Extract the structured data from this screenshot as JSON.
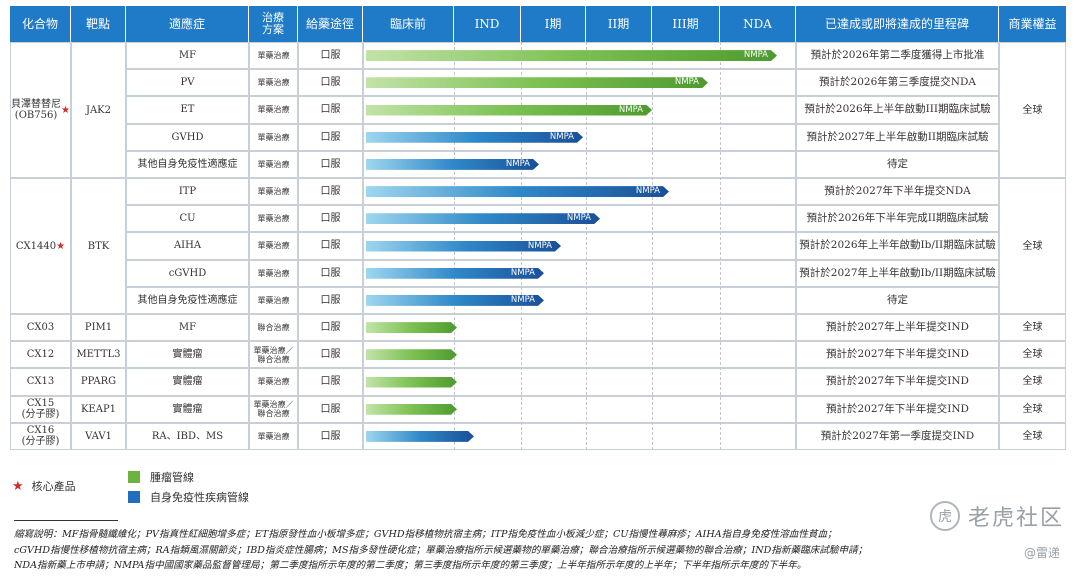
{
  "header": {
    "compound": "化合物",
    "target": "靶點",
    "indication": "適應症",
    "treatment": "治療\n方案",
    "route": "給藥途徑",
    "stages": [
      "臨床前",
      "IND",
      "I期",
      "II期",
      "III期",
      "NDA"
    ],
    "milestone": "已達成或即將達成的里程碑",
    "rights": "商業權益"
  },
  "groups": [
    {
      "compound": "貝澤替替尼\n(OB756)",
      "core": true,
      "target": "JAK2",
      "rights": "全球",
      "rows": [
        {
          "indication": "MF",
          "treatment": "單藥治療",
          "route": "口服",
          "progress": 0.95,
          "pipeline": "green",
          "tag": "NMPA",
          "milestone": "預計於2026年第二季度獲得上市批准"
        },
        {
          "indication": "PV",
          "treatment": "單藥治療",
          "route": "口服",
          "progress": 0.79,
          "pipeline": "green",
          "tag": "NMPA",
          "milestone": "預計於2026年第三季度提交NDA"
        },
        {
          "indication": "ET",
          "treatment": "單藥治療",
          "route": "口服",
          "progress": 0.66,
          "pipeline": "green",
          "tag": "NMPA",
          "milestone": "預計於2026年上半年啟動III期臨床試驗"
        },
        {
          "indication": "GVHD",
          "treatment": "單藥治療",
          "route": "口服",
          "progress": 0.5,
          "pipeline": "blue",
          "tag": "NMPA",
          "milestone": "預計於2027年上半年啟動II期臨床試驗"
        },
        {
          "indication": "其他自身免疫性適應症",
          "treatment": "單藥治療",
          "route": "口服",
          "progress": 0.4,
          "pipeline": "blue",
          "tag": "NMPA",
          "milestone": "待定"
        }
      ]
    },
    {
      "compound": "CX1440",
      "core": true,
      "target": "BTK",
      "rights": "全球",
      "rows": [
        {
          "indication": "ITP",
          "treatment": "單藥治療",
          "route": "口服",
          "progress": 0.7,
          "pipeline": "blue",
          "tag": "NMPA",
          "milestone": "預計於2027年下半年提交NDA"
        },
        {
          "indication": "CU",
          "treatment": "單藥治療",
          "route": "口服",
          "progress": 0.54,
          "pipeline": "blue",
          "tag": "NMPA",
          "milestone": "預計於2026年下半年完成II期臨床試驗"
        },
        {
          "indication": "AIHA",
          "treatment": "單藥治療",
          "route": "口服",
          "progress": 0.45,
          "pipeline": "blue",
          "tag": "NMPA",
          "milestone": "預計於2026年上半年啟動Ib/II期臨床試驗"
        },
        {
          "indication": "cGVHD",
          "treatment": "單藥治療",
          "route": "口服",
          "progress": 0.41,
          "pipeline": "blue",
          "tag": "NMPA",
          "milestone": "預計於2027年上半年啟動Ib/II期臨床試驗"
        },
        {
          "indication": "其他自身免疫性適應症",
          "treatment": "單藥治療",
          "route": "口服",
          "progress": 0.41,
          "pipeline": "blue",
          "tag": "NMPA",
          "milestone": "待定"
        }
      ]
    },
    {
      "compound": "CX03",
      "core": false,
      "target": "PIM1",
      "rights": "全球",
      "rows": [
        {
          "indication": "MF",
          "treatment": "聯合治療",
          "route": "口服",
          "progress": 0.21,
          "pipeline": "green",
          "tag": "",
          "milestone": "預計於2027年上半年提交IND"
        }
      ]
    },
    {
      "compound": "CX12",
      "core": false,
      "target": "METTL3",
      "rights": "全球",
      "rows": [
        {
          "indication": "實體瘤",
          "treatment": "單藥治療／\n聯合治療",
          "route": "口服",
          "progress": 0.21,
          "pipeline": "green",
          "tag": "",
          "milestone": "預計於2027年下半年提交IND"
        }
      ]
    },
    {
      "compound": "CX13",
      "core": false,
      "target": "PPARG",
      "rights": "全球",
      "rows": [
        {
          "indication": "實體瘤",
          "treatment": "單藥治療",
          "route": "口服",
          "progress": 0.21,
          "pipeline": "green",
          "tag": "",
          "milestone": "預計於2027年下半年提交IND"
        }
      ]
    },
    {
      "compound": "CX15\n(分子膠)",
      "core": false,
      "target": "KEAP1",
      "rights": "全球",
      "rows": [
        {
          "indication": "實體瘤",
          "treatment": "單藥治療／\n聯合治療",
          "route": "口服",
          "progress": 0.21,
          "pipeline": "green",
          "tag": "",
          "milestone": "預計於2027年下半年提交IND"
        }
      ]
    },
    {
      "compound": "CX16\n(分子膠)",
      "core": false,
      "target": "VAV1",
      "rights": "全球",
      "rows": [
        {
          "indication": "RA、IBD、MS",
          "treatment": "單藥治療",
          "route": "口服",
          "progress": 0.25,
          "pipeline": "blue",
          "tag": "",
          "milestone": "預計於2027年第一季度提交IND"
        }
      ]
    }
  ],
  "legend": {
    "core": "核心產品",
    "oncology": "腫瘤管線",
    "autoimmune": "自身免疫性疾病管線"
  },
  "colors": {
    "header": "#1f7ac7",
    "oncology": "#6cb33f",
    "autoimmune": "#1f6fbf",
    "star": "#d42b2b"
  },
  "footnote": [
    "縮寫說明：MF指骨髓纖維化；PV指真性紅細胞增多症；ET指原發性血小板增多症；GVHD指移植物抗宿主病；ITP指免疫性血小板減少症；CU指慢性蕁麻疹；AIHA指自身免疫性溶血性貧血；",
    "cGVHD指慢性移植物抗宿主病；RA指類風濕關節炎；IBD指炎症性腸病；MS指多發性硬化症；單藥治療指所示候選藥物的單藥治療；聯合治療指所示候選藥物的聯合治療；IND指新藥臨床試驗申請；",
    "NDA指新藥上市申請；NMPA指中國國家藥品監督管理局；第二季度指所示年度的第二季度；第三季度指所示年度的第三季度；上半年指所示年度的上半年；下半年指所示年度的下半年。"
  ],
  "watermark": {
    "brand": "老虎社区",
    "handle": "@雷递"
  }
}
